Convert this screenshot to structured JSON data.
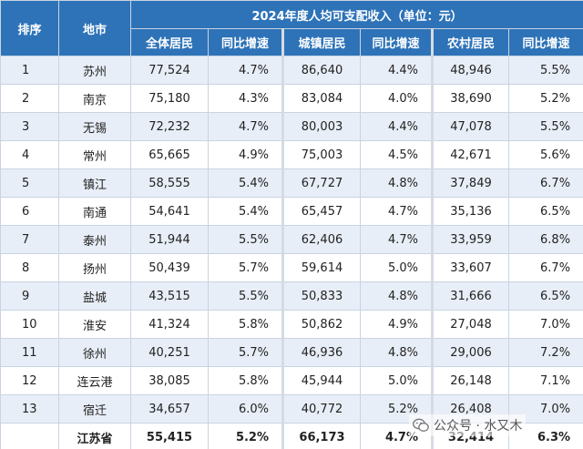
{
  "table": {
    "title": "2024年度人均可支配收入（单位：元）",
    "headers": {
      "rank": "排序",
      "city": "地市",
      "all": "全体居民",
      "all_yoy": "同比增速",
      "urban": "城镇居民",
      "urban_yoy": "同比增速",
      "rural": "农村居民",
      "rural_yoy": "同比增速"
    },
    "rows": [
      {
        "rank": "1",
        "city": "苏州",
        "all": "77,524",
        "all_yoy": "4.7%",
        "urban": "86,640",
        "urban_yoy": "4.4%",
        "rural": "48,946",
        "rural_yoy": "5.5%"
      },
      {
        "rank": "2",
        "city": "南京",
        "all": "75,180",
        "all_yoy": "4.3%",
        "urban": "83,084",
        "urban_yoy": "4.0%",
        "rural": "38,690",
        "rural_yoy": "5.2%"
      },
      {
        "rank": "3",
        "city": "无锡",
        "all": "72,232",
        "all_yoy": "4.7%",
        "urban": "80,003",
        "urban_yoy": "4.4%",
        "rural": "47,078",
        "rural_yoy": "5.5%"
      },
      {
        "rank": "4",
        "city": "常州",
        "all": "65,665",
        "all_yoy": "4.9%",
        "urban": "75,003",
        "urban_yoy": "4.5%",
        "rural": "42,671",
        "rural_yoy": "5.6%"
      },
      {
        "rank": "5",
        "city": "镇江",
        "all": "58,555",
        "all_yoy": "5.4%",
        "urban": "67,727",
        "urban_yoy": "4.8%",
        "rural": "37,849",
        "rural_yoy": "6.7%"
      },
      {
        "rank": "6",
        "city": "南通",
        "all": "54,641",
        "all_yoy": "5.4%",
        "urban": "65,457",
        "urban_yoy": "4.7%",
        "rural": "35,136",
        "rural_yoy": "6.5%"
      },
      {
        "rank": "7",
        "city": "泰州",
        "all": "51,944",
        "all_yoy": "5.5%",
        "urban": "62,406",
        "urban_yoy": "4.7%",
        "rural": "33,959",
        "rural_yoy": "6.8%"
      },
      {
        "rank": "8",
        "city": "扬州",
        "all": "50,439",
        "all_yoy": "5.7%",
        "urban": "59,614",
        "urban_yoy": "5.0%",
        "rural": "33,607",
        "rural_yoy": "6.7%"
      },
      {
        "rank": "9",
        "city": "盐城",
        "all": "43,515",
        "all_yoy": "5.5%",
        "urban": "50,833",
        "urban_yoy": "4.8%",
        "rural": "31,666",
        "rural_yoy": "6.5%"
      },
      {
        "rank": "10",
        "city": "淮安",
        "all": "41,324",
        "all_yoy": "5.8%",
        "urban": "50,862",
        "urban_yoy": "4.9%",
        "rural": "27,048",
        "rural_yoy": "7.0%"
      },
      {
        "rank": "11",
        "city": "徐州",
        "all": "40,251",
        "all_yoy": "5.7%",
        "urban": "46,936",
        "urban_yoy": "4.8%",
        "rural": "29,006",
        "rural_yoy": "7.2%"
      },
      {
        "rank": "12",
        "city": "连云港",
        "all": "38,085",
        "all_yoy": "5.8%",
        "urban": "45,944",
        "urban_yoy": "5.0%",
        "rural": "26,148",
        "rural_yoy": "7.1%"
      },
      {
        "rank": "13",
        "city": "宿迁",
        "all": "34,657",
        "all_yoy": "6.0%",
        "urban": "40,772",
        "urban_yoy": "5.2%",
        "rural": "26,408",
        "rural_yoy": "7.0%"
      }
    ],
    "total": {
      "rank": "",
      "city": "江苏省",
      "all": "55,415",
      "all_yoy": "5.2%",
      "urban": "66,173",
      "urban_yoy": "4.7%",
      "rural": "32,414",
      "rural_yoy": "6.3%"
    }
  },
  "watermark": {
    "icon": "wechat-icon",
    "text": "公众号 · 水又木"
  },
  "colors": {
    "header_bg": "#2e73b8",
    "band_bg": "#e8eef7"
  }
}
